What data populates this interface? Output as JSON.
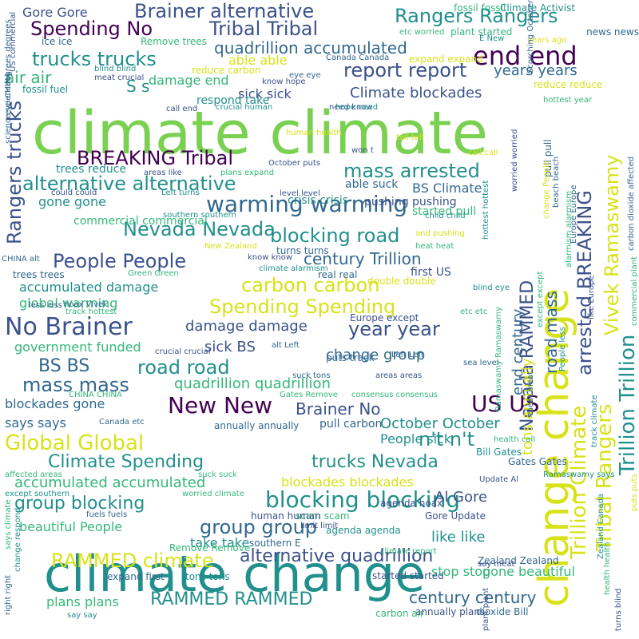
{
  "palette": {
    "dark_purple": "#440154",
    "indigo": "#3b528b",
    "blue": "#31688e",
    "teal": "#21908d",
    "green": "#35b779",
    "lime": "#7ad151",
    "yellow": "#d8e219"
  },
  "words": [
    {
      "text": "climate climate",
      "color": "#7ad151"
    },
    {
      "text": "climate change",
      "color": "#21908d"
    },
    {
      "text": "change change",
      "color": "#d8e219"
    },
    {
      "text": "Trillion Trillion",
      "color": "#21908d"
    },
    {
      "text": "Tribal Rangers",
      "color": "#d8e219"
    },
    {
      "text": "Trillion Climate",
      "color": "#d8e219"
    },
    {
      "text": "arrested BREAKING",
      "color": "#3b528b"
    },
    {
      "text": "Brainer alternative",
      "color": "#3b528b"
    },
    {
      "text": "Tribal Tribal",
      "color": "#3b528b"
    },
    {
      "text": "Spending No",
      "color": "#440154"
    },
    {
      "text": "Rangers Rangers",
      "color": "#21908d"
    },
    {
      "text": "end end",
      "color": "#440154"
    },
    {
      "text": "trucks trucks",
      "color": "#21908d"
    },
    {
      "text": "quadrillion accumulated",
      "color": "#31688e"
    },
    {
      "text": "report report",
      "color": "#3b528b"
    },
    {
      "text": "air air",
      "color": "#35b779"
    },
    {
      "text": "Rangers trucks",
      "color": "#3b528b"
    },
    {
      "text": "BREAKING Tribal",
      "color": "#440154"
    },
    {
      "text": "mass arrested",
      "color": "#21908d"
    },
    {
      "text": "alternative alternative",
      "color": "#21908d"
    },
    {
      "text": "warming warming",
      "color": "#31688e"
    },
    {
      "text": "Nevada Nevada",
      "color": "#21908d"
    },
    {
      "text": "blocking road",
      "color": "#21908d"
    },
    {
      "text": "People People",
      "color": "#3b528b"
    },
    {
      "text": "carbon carbon",
      "color": "#d8e219"
    },
    {
      "text": "No Brainer",
      "color": "#3b528b"
    },
    {
      "text": "Spending Spending",
      "color": "#d8e219"
    },
    {
      "text": "year year",
      "color": "#3b528b"
    },
    {
      "text": "BS BS",
      "color": "#31688e"
    },
    {
      "text": "road road",
      "color": "#21908d"
    },
    {
      "text": "mass mass",
      "color": "#31688e"
    },
    {
      "text": "New New",
      "color": "#440154"
    },
    {
      "text": "US US",
      "color": "#440154"
    },
    {
      "text": "Global Global",
      "color": "#d8e219"
    },
    {
      "text": "n't n't",
      "color": "#21908d"
    },
    {
      "text": "Climate Spending",
      "color": "#21908d"
    },
    {
      "text": "trucks Nevada",
      "color": "#21908d"
    },
    {
      "text": "blocking blocking",
      "color": "#21908d"
    },
    {
      "text": "group blocking",
      "color": "#21908d"
    },
    {
      "text": "group group",
      "color": "#31688e"
    },
    {
      "text": "alternative quadrillion",
      "color": "#3b528b"
    },
    {
      "text": "RAMMED climate",
      "color": "#d8e219"
    },
    {
      "text": "RAMMED RAMMED",
      "color": "#21908d"
    },
    {
      "text": "century century",
      "color": "#31688e"
    },
    {
      "text": "Gore Gore",
      "color": "#3b528b"
    },
    {
      "text": "S s",
      "color": "#21908d"
    },
    {
      "text": "damage end",
      "color": "#35b779"
    },
    {
      "text": "sick sick",
      "color": "#3b528b"
    },
    {
      "text": "Climate blockades",
      "color": "#3b528b"
    },
    {
      "text": "years years",
      "color": "#31688e"
    },
    {
      "text": "able able",
      "color": "#d8e219"
    },
    {
      "text": "Nevada RAMMED",
      "color": "#3b528b"
    },
    {
      "text": "road mass",
      "color": "#31688e"
    },
    {
      "text": "end century",
      "color": "#31688e"
    },
    {
      "text": "tons annually",
      "color": "#d8e219"
    },
    {
      "text": "Vivek Ramaswamy",
      "color": "#d8e219"
    },
    {
      "text": "accumulated damage",
      "color": "#21908d"
    },
    {
      "text": "global warming",
      "color": "#35b779"
    },
    {
      "text": "damage damage",
      "color": "#3b528b"
    },
    {
      "text": "sick BS",
      "color": "#3b528b"
    },
    {
      "text": "change group",
      "color": "#31688e"
    },
    {
      "text": "government funded",
      "color": "#35b779"
    },
    {
      "text": "quadrillion quadrillion",
      "color": "#35b779"
    },
    {
      "text": "Brainer No",
      "color": "#3b528b"
    },
    {
      "text": "October October",
      "color": "#21908d"
    },
    {
      "text": "People sick",
      "color": "#21908d"
    },
    {
      "text": "century Trillion",
      "color": "#31688e"
    },
    {
      "text": "BS Climate",
      "color": "#31688e"
    },
    {
      "text": "gone gone",
      "color": "#21908d"
    },
    {
      "text": "accumulated accumulated",
      "color": "#35b779"
    },
    {
      "text": "blockades blockades",
      "color": "#d8e219"
    },
    {
      "text": "blockades gone",
      "color": "#31688e"
    },
    {
      "text": "says says",
      "color": "#31688e"
    },
    {
      "text": "beautiful People",
      "color": "#35b779"
    },
    {
      "text": "take take",
      "color": "#21908d"
    },
    {
      "text": "Al Gore",
      "color": "#3b528b"
    },
    {
      "text": "like like",
      "color": "#21908d"
    },
    {
      "text": "stop stop",
      "color": "#35b779"
    },
    {
      "text": "gone beautiful",
      "color": "#35b779"
    },
    {
      "text": "plans plans",
      "color": "#35b779"
    },
    {
      "text": "crisis crisis",
      "color": "#21908d"
    },
    {
      "text": "pushing pushing",
      "color": "#3b528b"
    },
    {
      "text": "Remove trees",
      "color": "#35b779"
    },
    {
      "text": "Climate Activist",
      "color": "#21908d"
    },
    {
      "text": "fossil fossil",
      "color": "#35b779"
    },
    {
      "text": "plant started",
      "color": "#35b779"
    },
    {
      "text": "news news",
      "color": "#31688e"
    },
    {
      "text": "ice ice",
      "color": "#31688e"
    },
    {
      "text": "expand expand",
      "color": "#d8e219"
    },
    {
      "text": "Canada Canada",
      "color": "#31688e"
    },
    {
      "text": "reduce carbon",
      "color": "#d8e219"
    },
    {
      "text": "reduce reduce",
      "color": "#d8e219"
    },
    {
      "text": "fossil fuel",
      "color": "#21908d"
    },
    {
      "text": "respond take",
      "color": "#21908d"
    },
    {
      "text": "trees reduce",
      "color": "#21908d"
    },
    {
      "text": "commercial commercial",
      "color": "#35b779"
    },
    {
      "text": "carbon dioxide affected",
      "color": "#31688e"
    },
    {
      "text": "hottest year",
      "color": "#35b779"
    },
    {
      "text": "pull pull",
      "color": "#31688e"
    },
    {
      "text": "started pull",
      "color": "#35b779"
    },
    {
      "text": "able suck",
      "color": "#31688e"
    },
    {
      "text": "first US",
      "color": "#3b528b"
    },
    {
      "text": "double double",
      "color": "#d8e219"
    },
    {
      "text": "real real",
      "color": "#31688e"
    },
    {
      "text": "trees trees",
      "color": "#31688e"
    },
    {
      "text": "Green Green",
      "color": "#35b779"
    },
    {
      "text": "turns turns",
      "color": "#31688e"
    },
    {
      "text": "hoax Vivek",
      "color": "#31688e"
    },
    {
      "text": "less less",
      "color": "#31688e"
    },
    {
      "text": "Europe except",
      "color": "#3b528b"
    },
    {
      "text": "health call",
      "color": "#35b779"
    },
    {
      "text": "Bill Gates",
      "color": "#21908d"
    },
    {
      "text": "Gates Gates",
      "color": "#31688e"
    },
    {
      "text": "Update Al",
      "color": "#3b528b"
    },
    {
      "text": "agenda hoax",
      "color": "#3b528b"
    },
    {
      "text": "Gore Update",
      "color": "#3b528b"
    },
    {
      "text": "scam scam",
      "color": "#35b779"
    },
    {
      "text": "human human",
      "color": "#3b528b"
    },
    {
      "text": "fuels fuels",
      "color": "#31688e"
    },
    {
      "text": "Remove Remove",
      "color": "#35b779"
    },
    {
      "text": "started started",
      "color": "#3b528b"
    },
    {
      "text": "climate report",
      "color": "#35b779"
    },
    {
      "text": "Zealand Zealand",
      "color": "#31688e"
    },
    {
      "text": "plant plant",
      "color": "#3b528b"
    },
    {
      "text": "expand first",
      "color": "#31688e"
    },
    {
      "text": "tons tons",
      "color": "#21908d"
    },
    {
      "text": "annually plans",
      "color": "#3b528b"
    },
    {
      "text": "carbon air",
      "color": "#35b779"
    },
    {
      "text": "dioxide Bill",
      "color": "#31688e"
    },
    {
      "text": "puts track",
      "color": "#31688e"
    },
    {
      "text": "suck tons",
      "color": "#31688e"
    },
    {
      "text": "areas areas",
      "color": "#3b528b"
    },
    {
      "text": "consensus consensus",
      "color": "#35b779"
    },
    {
      "text": "Gates Remove",
      "color": "#35b779"
    },
    {
      "text": "Canada etc",
      "color": "#31688e"
    },
    {
      "text": "annually annually",
      "color": "#31688e"
    },
    {
      "text": "pull carbon",
      "color": "#31688e"
    },
    {
      "text": "suck suck",
      "color": "#35b779"
    },
    {
      "text": "affected areas",
      "color": "#35b779"
    },
    {
      "text": "except southern",
      "color": "#21908d"
    },
    {
      "text": "worried climate",
      "color": "#35b779"
    },
    {
      "text": "southern E",
      "color": "#31688e"
    },
    {
      "text": "agenda agenda",
      "color": "#21908d"
    },
    {
      "text": "limit limit",
      "color": "#3b528b"
    },
    {
      "text": "say meat",
      "color": "#3b528b"
    },
    {
      "text": "right right",
      "color": "#31688e"
    },
    {
      "text": "change respond",
      "color": "#21908d"
    },
    {
      "text": "says climate",
      "color": "#35b779"
    },
    {
      "text": "say say",
      "color": "#21908d"
    },
    {
      "text": "alt Left",
      "color": "#31688e"
    },
    {
      "text": "Left Left",
      "color": "#31688e"
    },
    {
      "text": "sea level",
      "color": "#31688e"
    },
    {
      "text": "CHINA CHINA",
      "color": "#35b779"
    },
    {
      "text": "crucial crucial",
      "color": "#3b528b"
    },
    {
      "text": "track hottest",
      "color": "#35b779"
    },
    {
      "text": "human health",
      "color": "#d8e219"
    },
    {
      "text": "need know",
      "color": "#3b528b"
    },
    {
      "text": "hope need",
      "color": "#21908d"
    },
    {
      "text": "tell tell",
      "color": "#d8e219"
    },
    {
      "text": "call call",
      "color": "#d8e219"
    },
    {
      "text": "won t",
      "color": "#3b528b"
    },
    {
      "text": "October puts",
      "color": "#3b528b"
    },
    {
      "text": "plans expand",
      "color": "#35b779"
    },
    {
      "text": "areas like",
      "color": "#3b528b"
    },
    {
      "text": "could could",
      "color": "#3b528b"
    },
    {
      "text": "Left turns",
      "color": "#21908d"
    },
    {
      "text": "level level",
      "color": "#3b528b"
    },
    {
      "text": "child child",
      "color": "#21908d"
    },
    {
      "text": "southern southern",
      "color": "#21908d"
    },
    {
      "text": "New Zealand",
      "color": "#d8e219"
    },
    {
      "text": "know know",
      "color": "#3b528b"
    },
    {
      "text": "climate alarmism",
      "color": "#21908d"
    },
    {
      "text": "CHINA alt",
      "color": "#31688e"
    },
    {
      "text": "and pushing",
      "color": "#d8e219"
    },
    {
      "text": "heat heat",
      "color": "#35b779"
    },
    {
      "text": "blind eye",
      "color": "#21908d"
    },
    {
      "text": "etc etc",
      "color": "#35b779"
    },
    {
      "text": "etc worried",
      "color": "#35b779"
    },
    {
      "text": "E New",
      "color": "#21908d"
    },
    {
      "text": "years ago",
      "color": "#d8e219"
    },
    {
      "text": "know hope",
      "color": "#3b528b"
    },
    {
      "text": "eye eye",
      "color": "#31688e"
    },
    {
      "text": "blind blind",
      "color": "#21908d"
    },
    {
      "text": "meat crucial",
      "color": "#3b528b"
    },
    {
      "text": "call end",
      "color": "#3b528b"
    },
    {
      "text": "crucial human",
      "color": "#21908d"
    },
    {
      "text": "science science",
      "color": "#31688e"
    },
    {
      "text": "eye CHINA",
      "color": "#31688e"
    },
    {
      "text": "degrees degrees",
      "color": "#31688e"
    },
    {
      "text": "US commercial",
      "color": "#3b528b"
    },
    {
      "text": "meat meat",
      "color": "#31688e"
    },
    {
      "text": "worried worried",
      "color": "#3b528b"
    },
    {
      "text": "beach beach",
      "color": "#31688e"
    },
    {
      "text": "change People",
      "color": "#d8e219"
    },
    {
      "text": "except except",
      "color": "#35b779"
    },
    {
      "text": "alarmism alarmism",
      "color": "#35b779"
    },
    {
      "text": "Europe Europe",
      "color": "#31688e"
    },
    {
      "text": "People less",
      "color": "#21908d"
    },
    {
      "text": "hottest hottest",
      "color": "#21908d"
    },
    {
      "text": "Ramaswamy Ramaswamy",
      "color": "#35b779"
    },
    {
      "text": "Ramaswamy says",
      "color": "#21908d"
    },
    {
      "text": "like Europe",
      "color": "#3b528b"
    },
    {
      "text": "track climate",
      "color": "#21908d"
    },
    {
      "text": "puts puts",
      "color": "#d8e219"
    },
    {
      "text": "turns blind",
      "color": "#3b528b"
    },
    {
      "text": "Zealand Canada",
      "color": "#21908d"
    },
    {
      "text": "health health",
      "color": "#35b779"
    },
    {
      "text": "commercial plant",
      "color": "#35b779"
    },
    {
      "text": "Scorching October",
      "color": "#31688e"
    },
    {
      "text": "years Scorching",
      "color": "#3b528b"
    },
    {
      "text": "Scientists say",
      "color": "#21908d"
    },
    {
      "text": "change agenda",
      "color": "#3b528b"
    },
    {
      "text": "less affected",
      "color": "#21908d"
    },
    {
      "text": "Activist Activist",
      "color": "#21908d"
    },
    {
      "text": "C C",
      "color": "#d8e219"
    }
  ]
}
